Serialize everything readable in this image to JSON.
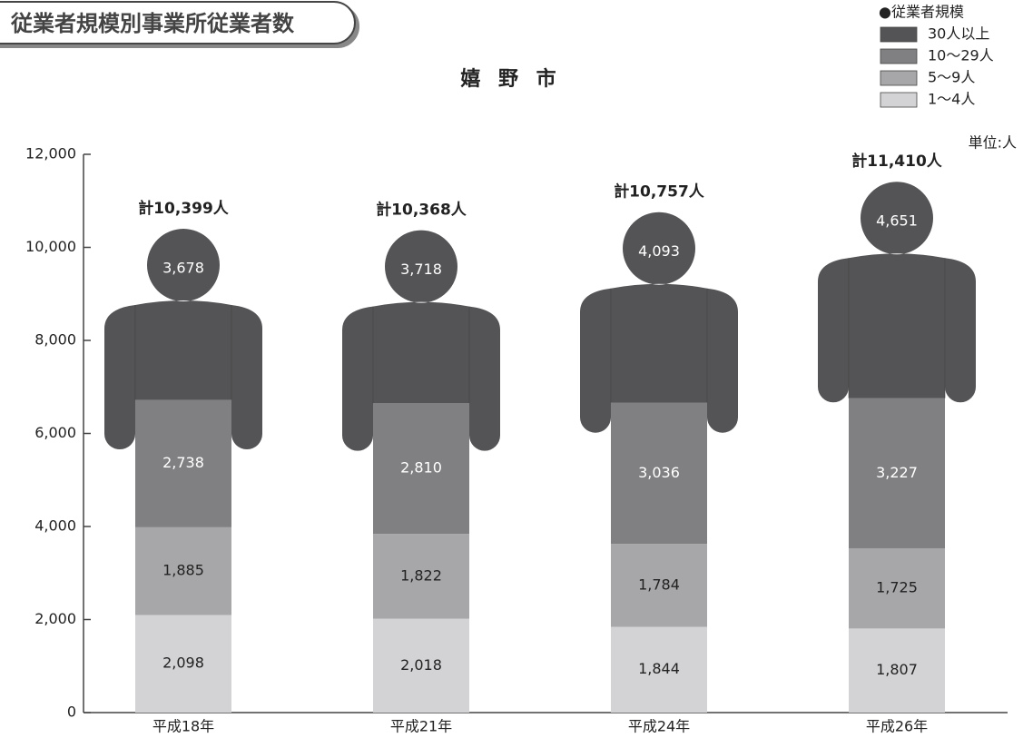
{
  "chart_data": {
    "type": "bar",
    "title": "従業者規模別事業所従業者数",
    "subtitle": "嬉 野 市",
    "legend_title": "●従業者規模",
    "unit": "単位:人",
    "categories": [
      "平成18年",
      "平成21年",
      "平成24年",
      "平成26年"
    ],
    "series": [
      {
        "name": "1〜4人",
        "color": "#d3d3d5",
        "label_color": "#222222",
        "values": [
          2098,
          2018,
          1844,
          1807
        ],
        "value_labels": [
          "2,098",
          "2,018",
          "1,844",
          "1,807"
        ]
      },
      {
        "name": "5〜9人",
        "color": "#a7a7a9",
        "label_color": "#222222",
        "values": [
          1885,
          1822,
          1784,
          1725
        ],
        "value_labels": [
          "1,885",
          "1,822",
          "1,784",
          "1,725"
        ]
      },
      {
        "name": "10〜29人",
        "color": "#808082",
        "label_color": "#ffffff",
        "values": [
          2738,
          2810,
          3036,
          3227
        ],
        "value_labels": [
          "2,738",
          "2,810",
          "3,036",
          "3,227"
        ]
      },
      {
        "name": "30人以上",
        "color": "#545456",
        "label_color": "#ffffff",
        "values": [
          3678,
          3718,
          4093,
          4651
        ],
        "value_labels": [
          "3,678",
          "3,718",
          "4,093",
          "4,651"
        ]
      }
    ],
    "totals": [
      10399,
      10368,
      10757,
      11410
    ],
    "total_labels": [
      "計10,399人",
      "計10,368人",
      "計10,757人",
      "計11,410人"
    ],
    "ylim": [
      0,
      12000
    ],
    "yticks": [
      0,
      {
        "value": 2000,
        "label": "2,000"
      },
      {
        "value": 4000,
        "label": "4,000"
      },
      {
        "value": 6000,
        "label": "6,000"
      },
      {
        "value": 8000,
        "label": "8,000"
      },
      {
        "value": 10000,
        "label": "10,000"
      },
      {
        "value": 12000,
        "label": "12,000"
      }
    ]
  }
}
